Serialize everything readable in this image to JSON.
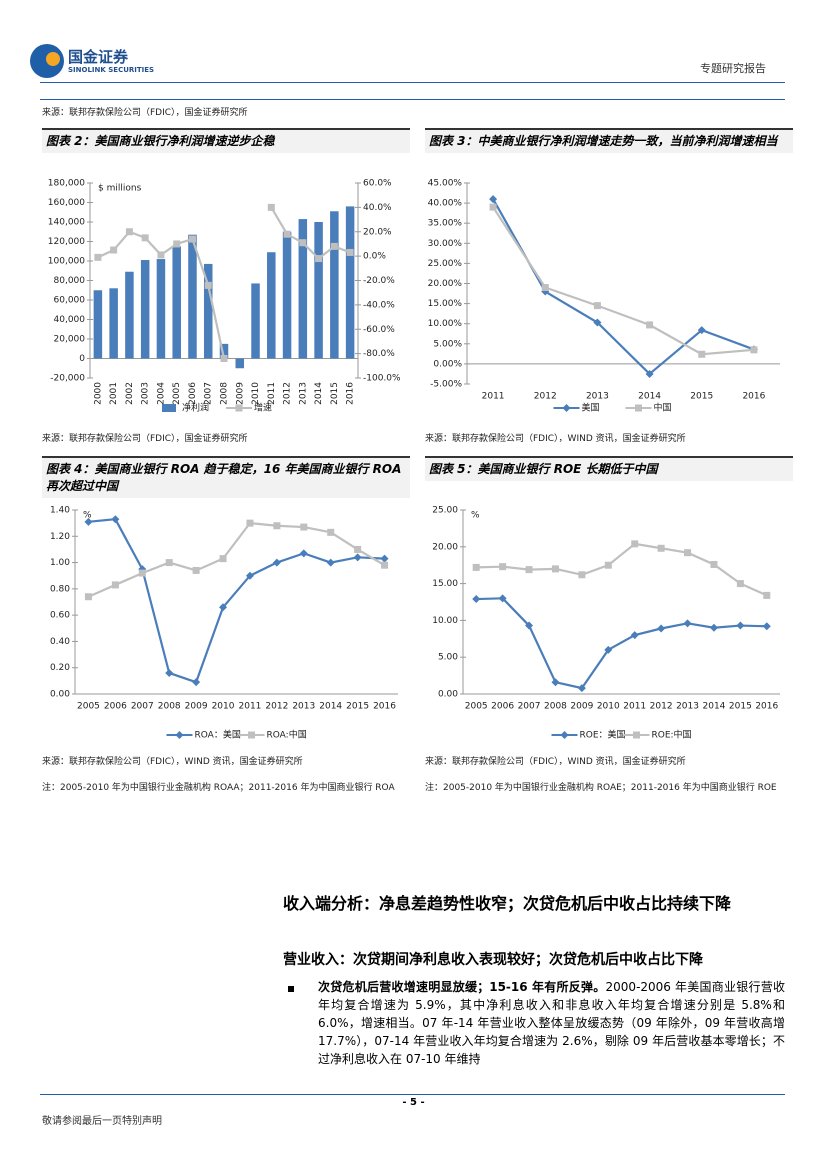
{
  "header": {
    "logo_cn": "国金证券",
    "logo_en": "SINOLINK SECURITIES",
    "report_type": "专题研究报告"
  },
  "top_source": "来源：联邦存款保险公司（FDIC），国金证券研究所",
  "chart_data": [
    {
      "type": "bar",
      "title": "图表 2：美国商业银行净利润增速逆步企稳",
      "source": "来源：联邦存款保险公司（FDIC），国金证券研究所",
      "annotation": "$ millions",
      "categories": [
        "2000",
        "2001",
        "2002",
        "2003",
        "2004",
        "2005",
        "2006",
        "2007",
        "2008",
        "2009",
        "2010",
        "2011",
        "2012",
        "2013",
        "2014",
        "2015",
        "2016"
      ],
      "series": [
        {
          "name": "净利润",
          "color": "#4a7ebb",
          "values": [
            70000,
            72000,
            89000,
            101000,
            102000,
            115000,
            127000,
            97000,
            15000,
            -10000,
            77000,
            109000,
            130000,
            143000,
            140000,
            151000,
            156000
          ]
        },
        {
          "name": "增速",
          "type": "line",
          "axis": "y2",
          "marker": "square",
          "color": "#bfbfbf",
          "values": [
            -1,
            5,
            20,
            15,
            1,
            10,
            14,
            -24,
            -84,
            null,
            null,
            40,
            18,
            11,
            -2,
            8,
            3
          ]
        }
      ],
      "ylim": [
        -20000,
        180000
      ],
      "yticks": [
        {
          "value": -20000,
          "label": "-20,000"
        },
        0,
        {
          "value": 20000,
          "label": "20,000"
        },
        {
          "value": 40000,
          "label": "40,000"
        },
        {
          "value": 60000,
          "label": "60,000"
        },
        {
          "value": 80000,
          "label": "80,000"
        },
        {
          "value": 100000,
          "label": "100,000"
        },
        {
          "value": 120000,
          "label": "120,000"
        },
        {
          "value": 140000,
          "label": "140,000"
        },
        {
          "value": 160000,
          "label": "160,000"
        },
        {
          "value": 180000,
          "label": "180,000"
        }
      ],
      "y2lim": [
        -100,
        60
      ],
      "y2ticks": [
        {
          "value": -100,
          "label": "-100.0%"
        },
        {
          "value": -80,
          "label": "-80.0%"
        },
        {
          "value": -60,
          "label": "-60.0%"
        },
        {
          "value": -40,
          "label": "-40.0%"
        },
        {
          "value": -20,
          "label": "-20.0%"
        },
        {
          "value": 0,
          "label": "0.0%"
        },
        {
          "value": 20,
          "label": "20.0%"
        },
        {
          "value": 40,
          "label": "40.0%"
        },
        {
          "value": 60,
          "label": "60.0%"
        }
      ],
      "legend": "bottom"
    },
    {
      "type": "line",
      "title": "图表 3：中美商业银行净利润增速走势一致，当前净利润增速相当",
      "source": "来源：联邦存款保险公司（FDIC），WIND 资讯，国金证券研究所",
      "categories": [
        "2011",
        "2012",
        "2013",
        "2014",
        "2015",
        "2016"
      ],
      "series": [
        {
          "name": "美国",
          "marker": "diamond",
          "color": "#4a7ebb",
          "values": [
            41,
            18,
            10.3,
            -2.5,
            8.4,
            3.6
          ]
        },
        {
          "name": "中国",
          "marker": "square",
          "color": "#bfbfbf",
          "values": [
            39,
            19,
            14.5,
            9.7,
            2.4,
            3.5
          ]
        }
      ],
      "ylim": [
        -5,
        45
      ],
      "yticks": [
        {
          "value": -5,
          "label": "-5.00%"
        },
        {
          "value": 0,
          "label": "0.00%"
        },
        {
          "value": 5,
          "label": "5.00%"
        },
        {
          "value": 10,
          "label": "10.00%"
        },
        {
          "value": 15,
          "label": "15.00%"
        },
        {
          "value": 20,
          "label": "20.00%"
        },
        {
          "value": 25,
          "label": "25.00%"
        },
        {
          "value": 30,
          "label": "30.00%"
        },
        {
          "value": 35,
          "label": "35.00%"
        },
        {
          "value": 40,
          "label": "40.00%"
        },
        {
          "value": 45,
          "label": "45.00%"
        }
      ],
      "legend": "bottom"
    },
    {
      "type": "line",
      "title": "图表 4：美国商业银行 ROA 趋于稳定，16 年美国商业银行 ROA 再次超过中国",
      "source": "来源：联邦存款保险公司（FDIC），WIND 资讯，国金证券研究所",
      "note": "注：2005-2010 年为中国银行业金融机构 ROAA；2011-2016 年为中国商业银行 ROA",
      "annotation": "%",
      "categories": [
        "2005",
        "2006",
        "2007",
        "2008",
        "2009",
        "2010",
        "2011",
        "2012",
        "2013",
        "2014",
        "2015",
        "2016"
      ],
      "series": [
        {
          "name": "ROA：美国",
          "marker": "diamond",
          "color": "#4a7ebb",
          "values": [
            1.31,
            1.33,
            0.95,
            0.16,
            0.09,
            0.66,
            0.9,
            1.0,
            1.07,
            1.0,
            1.04,
            1.03
          ]
        },
        {
          "name": "ROA:中国",
          "marker": "square",
          "color": "#bfbfbf",
          "values": [
            0.74,
            0.83,
            0.92,
            1.0,
            0.94,
            1.03,
            1.3,
            1.28,
            1.27,
            1.23,
            1.1,
            0.98
          ]
        }
      ],
      "ylim": [
        0,
        1.4
      ],
      "yticks": [
        {
          "value": 0,
          "label": "0.00"
        },
        {
          "value": 0.2,
          "label": "0.20"
        },
        {
          "value": 0.4,
          "label": "0.40"
        },
        {
          "value": 0.6,
          "label": "0.60"
        },
        {
          "value": 0.8,
          "label": "0.80"
        },
        {
          "value": 1,
          "label": "1.00"
        },
        {
          "value": 1.2,
          "label": "1.20"
        },
        {
          "value": 1.4,
          "label": "1.40"
        }
      ],
      "legend": "bottom"
    },
    {
      "type": "line",
      "title": "图表 5：美国商业银行 ROE 长期低于中国",
      "source": "来源：联邦存款保险公司（FDIC），WIND 资讯，国金证券研究所",
      "note": "注：2005-2010 年为中国银行业金融机构 ROAE；2011-2016 年为中国商业银行 ROE",
      "annotation": "%",
      "categories": [
        "2005",
        "2006",
        "2007",
        "2008",
        "2009",
        "2010",
        "2011",
        "2012",
        "2013",
        "2014",
        "2015",
        "2016"
      ],
      "series": [
        {
          "name": "ROE：美国",
          "marker": "diamond",
          "color": "#4a7ebb",
          "values": [
            12.9,
            13.0,
            9.3,
            1.6,
            0.8,
            6.0,
            8.0,
            8.9,
            9.6,
            9.0,
            9.3,
            9.2
          ]
        },
        {
          "name": "ROE:中国",
          "marker": "square",
          "color": "#bfbfbf",
          "values": [
            17.2,
            17.3,
            16.9,
            17.0,
            16.2,
            17.5,
            20.4,
            19.8,
            19.2,
            17.6,
            15.0,
            13.4
          ]
        }
      ],
      "ylim": [
        0,
        25
      ],
      "yticks": [
        {
          "value": 0,
          "label": "0.00"
        },
        {
          "value": 5,
          "label": "5.00"
        },
        {
          "value": 10,
          "label": "10.00"
        },
        {
          "value": 15,
          "label": "15.00"
        },
        {
          "value": 20,
          "label": "20.00"
        },
        {
          "value": 25,
          "label": "25.00"
        }
      ],
      "legend": "bottom"
    }
  ],
  "section": {
    "heading": "收入端分析：净息差趋势性收窄；次贷危机后中收占比持续下降",
    "subheading": "营业收入：次贷期间净利息收入表现较好；次贷危机后中收占比下降",
    "bullet_lead": "次贷危机后营收增速明显放缓；15-16 年有所反弹。",
    "bullet_text": "2000-2006 年美国商业银行营收年均复合增速为 5.9%，其中净利息收入和非息收入年均复合增速分别是 5.8%和 6.0%，增速相当。07 年-14 年营业收入整体呈放缓态势（09 年除外，09 年营收高增 17.7%），07-14 年营业收入年均复合增速为 2.6%，剔除 09 年后营收基本零增长；不过净利息收入在 07-10 年维持"
  },
  "footer": {
    "page": "- 5 -",
    "disclaimer": "敬请参阅最后一页特别声明"
  }
}
